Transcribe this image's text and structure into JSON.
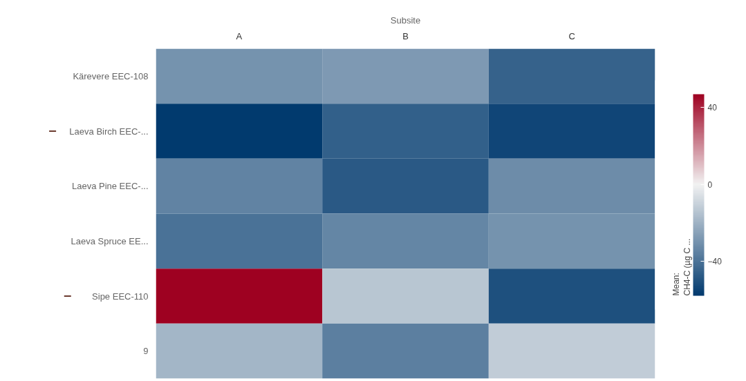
{
  "chart_data": {
    "type": "heatmap",
    "xlabel": "Subsite",
    "clabel": "Mean:\nCH4-C (µg C ...",
    "categories": [
      "A",
      "B",
      "C"
    ],
    "y_categories": [
      "Kärevere EEC-108",
      "Laeva Birch EEC-...",
      "Laeva Pine EEC-...",
      "Laeva Spruce EE...",
      "Sipe EEC-110",
      "9"
    ],
    "cells": [
      [
        -30,
        -28,
        -45
      ],
      [
        -58,
        -46,
        -54
      ],
      [
        -35,
        -48,
        -32
      ],
      [
        -40,
        -34,
        -30
      ],
      [
        47,
        -14,
        -51
      ],
      [
        -19,
        -36,
        -12
      ]
    ],
    "clim": [
      -58,
      47
    ],
    "cticks": [
      -40,
      0,
      40
    ]
  }
}
